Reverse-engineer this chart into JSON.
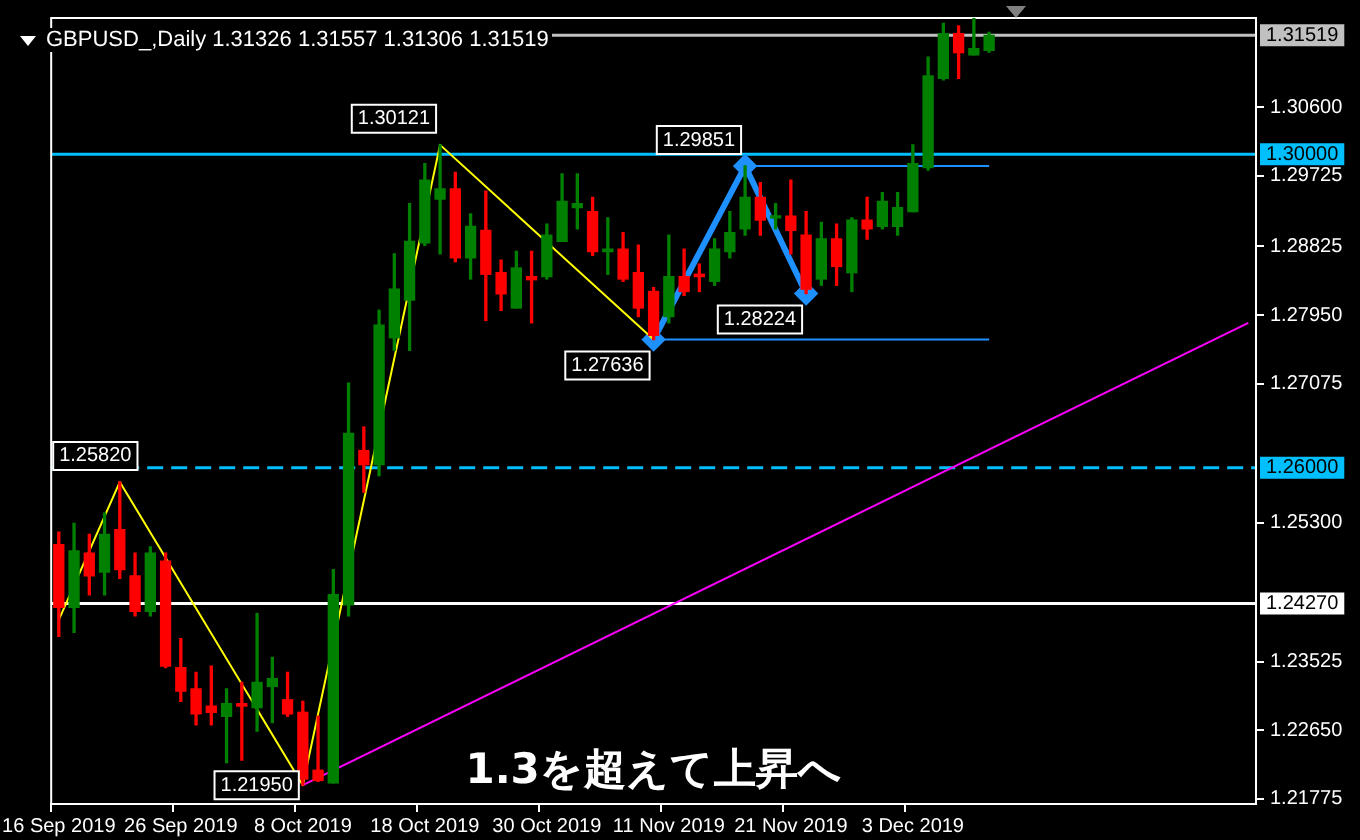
{
  "chart_data": {
    "type": "candlestick",
    "title": "GBPUSD_,Daily 1.31326 1.31557 1.31306 1.31519",
    "categories": [
      "16 Sep 2019",
      null,
      null,
      null,
      null,
      null,
      null,
      null,
      "26 Sep 2019",
      null,
      null,
      null,
      null,
      null,
      null,
      null,
      "8 Oct 2019",
      null,
      null,
      null,
      null,
      null,
      null,
      null,
      "18 Oct 2019",
      null,
      null,
      null,
      null,
      null,
      null,
      null,
      "30 Oct 2019",
      null,
      null,
      null,
      null,
      null,
      null,
      null,
      "11 Nov 2019",
      null,
      null,
      null,
      null,
      null,
      null,
      null,
      "21 Nov 2019",
      null,
      null,
      null,
      null,
      null,
      null,
      null,
      "3 Dec 2019",
      null,
      null,
      null,
      null,
      null,
      null,
      null,
      null,
      null,
      null,
      null,
      null,
      null,
      null,
      null,
      null,
      null,
      null,
      null,
      null,
      null,
      null
    ],
    "ohlc": [
      [
        1.2502,
        1.2518,
        1.2385,
        1.2422
      ],
      [
        1.2422,
        1.2529,
        1.239,
        1.2494
      ],
      [
        1.2491,
        1.2515,
        1.2438,
        1.2462
      ],
      [
        1.2467,
        1.2542,
        1.2438,
        1.2515
      ],
      [
        1.2521,
        1.2582,
        1.2459,
        1.247
      ],
      [
        1.2462,
        1.2491,
        1.2411,
        1.2417
      ],
      [
        1.2417,
        1.2499,
        1.2411,
        1.2491
      ],
      [
        1.2481,
        1.2491,
        1.2345,
        1.2347
      ],
      [
        1.2345,
        1.2382,
        1.2302,
        1.2315
      ],
      [
        1.2318,
        1.2339,
        1.2272,
        1.2286
      ],
      [
        1.2296,
        1.2347,
        1.2272,
        1.2288
      ],
      [
        1.2283,
        1.2318,
        1.2224,
        1.2299
      ],
      [
        1.2299,
        1.2326,
        1.2227,
        1.2296
      ],
      [
        1.2294,
        1.2414,
        1.2264,
        1.2326
      ],
      [
        1.2321,
        1.2358,
        1.2275,
        1.2331
      ],
      [
        1.2304,
        1.2339,
        1.2283,
        1.2286
      ],
      [
        1.2288,
        1.2302,
        1.2195,
        1.2203
      ],
      [
        1.2214,
        1.2283,
        1.22,
        1.2201
      ],
      [
        1.2198,
        1.247,
        1.2198,
        1.2438
      ],
      [
        1.2425,
        1.2708,
        1.2411,
        1.2644
      ],
      [
        1.2622,
        1.2652,
        1.2569,
        1.2604
      ],
      [
        1.2604,
        1.2801,
        1.259,
        1.2782
      ],
      [
        1.2766,
        1.2873,
        1.275,
        1.2828
      ],
      [
        1.2814,
        1.2937,
        1.275,
        1.2889
      ],
      [
        1.2887,
        1.2988,
        1.2884,
        1.2967
      ],
      [
        1.2943,
        1.30121,
        1.2873,
        1.2956
      ],
      [
        1.2956,
        1.2977,
        1.2863,
        1.2868
      ],
      [
        1.2868,
        1.2924,
        1.2841,
        1.2908
      ],
      [
        1.2903,
        1.2953,
        1.2788,
        1.2847
      ],
      [
        1.2849,
        1.2865,
        1.2801,
        1.2822
      ],
      [
        1.2804,
        1.2876,
        1.2804,
        1.2855
      ],
      [
        1.2844,
        1.2876,
        1.2785,
        1.284
      ],
      [
        1.2844,
        1.2911,
        1.2841,
        1.2897
      ],
      [
        1.2889,
        1.2975,
        1.2889,
        1.294
      ],
      [
        1.2932,
        1.2975,
        1.2905,
        1.2937
      ],
      [
        1.2927,
        1.2945,
        1.2871,
        1.2876
      ],
      [
        1.2876,
        1.2919,
        1.2847,
        1.2879
      ],
      [
        1.2879,
        1.29,
        1.2838,
        1.2841
      ],
      [
        1.2849,
        1.2884,
        1.2793,
        1.2804
      ],
      [
        1.2825,
        1.283,
        1.27636,
        1.2769
      ],
      [
        1.2793,
        1.2897,
        1.2785,
        1.2844
      ],
      [
        1.2844,
        1.2879,
        1.282,
        1.2825
      ],
      [
        1.2847,
        1.286,
        1.2825,
        1.2844
      ],
      [
        1.2838,
        1.2892,
        1.2833,
        1.2879
      ],
      [
        1.2876,
        1.2927,
        1.2868,
        1.29
      ],
      [
        1.2905,
        1.29851,
        1.2897,
        1.2945
      ],
      [
        1.2945,
        1.2964,
        1.2897,
        1.2916
      ],
      [
        1.2919,
        1.2937,
        1.2905,
        1.2921
      ],
      [
        1.2921,
        1.2967,
        1.2873,
        1.2903
      ],
      [
        1.2897,
        1.2927,
        1.28224,
        1.2828
      ],
      [
        1.2841,
        1.2913,
        1.2833,
        1.2892
      ],
      [
        1.2892,
        1.2911,
        1.2833,
        1.2857
      ],
      [
        1.2849,
        1.2919,
        1.2825,
        1.2916
      ],
      [
        1.2916,
        1.2945,
        1.2892,
        1.2905
      ],
      [
        1.2908,
        1.2951,
        1.2905,
        1.294
      ],
      [
        1.2908,
        1.2951,
        1.2897,
        1.2932
      ],
      [
        1.2927,
        1.3012,
        1.2927,
        1.2988
      ],
      [
        1.2983,
        1.3124,
        1.298,
        1.31
      ],
      [
        1.3097,
        1.3167,
        1.3095,
        1.3154
      ],
      [
        1.3154,
        1.3164,
        1.3097,
        1.313
      ],
      [
        1.3127,
        1.318,
        1.3127,
        1.3135
      ],
      [
        1.31326,
        1.31557,
        1.31306,
        1.31519
      ],
      null,
      null,
      null,
      null,
      null,
      null,
      null,
      null,
      null,
      null,
      null,
      null,
      null,
      null,
      null,
      null,
      null
    ],
    "colors": [
      "#ff0000",
      "#008000",
      "#ff0000",
      "#008000",
      "#ff0000",
      "#ff0000",
      "#008000",
      "#ff0000",
      "#ff0000",
      "#ff0000",
      "#ff0000",
      "#008000",
      "#ff0000",
      "#008000",
      "#008000",
      "#ff0000",
      "#ff0000",
      "#ff0000",
      "#008000",
      "#008000",
      "#ff0000",
      "#008000",
      "#008000",
      "#008000",
      "#008000",
      "#008000",
      "#ff0000",
      "#008000",
      "#ff0000",
      "#ff0000",
      "#008000",
      "#ff0000",
      "#008000",
      "#008000",
      "#008000",
      "#ff0000",
      "#008000",
      "#ff0000",
      "#ff0000",
      "#ff0000",
      "#008000",
      "#ff0000",
      "#ff0000",
      "#008000",
      "#008000",
      "#008000",
      "#ff0000",
      "#008000",
      "#ff0000",
      "#ff0000",
      "#008000",
      "#ff0000",
      "#008000",
      "#ff0000",
      "#008000",
      "#008000",
      "#008000",
      "#008000",
      "#008000",
      "#ff0000",
      "#008000",
      "#008000",
      null,
      null,
      null,
      null,
      null,
      null,
      null,
      null,
      null,
      null,
      null,
      null,
      null,
      null,
      null,
      null,
      null
    ],
    "series": [
      {
        "type": "line",
        "color": "#ffff00",
        "values": [
          1.2406,
          null,
          null,
          null,
          1.2582,
          null,
          null,
          null,
          null,
          null,
          null,
          null,
          null,
          null,
          null,
          null,
          1.2195,
          null,
          null,
          null,
          null,
          null,
          null,
          null,
          null,
          1.30121,
          null,
          null,
          null,
          null,
          null,
          null,
          null,
          null,
          null,
          null,
          null,
          null,
          null,
          1.27636,
          null,
          null,
          null,
          null,
          null,
          null,
          null,
          null,
          null,
          null,
          null,
          null,
          null,
          null,
          null,
          null,
          null,
          null,
          null,
          null,
          null,
          null,
          null,
          null,
          null,
          null,
          null,
          null,
          null,
          null,
          null,
          null,
          null,
          null,
          null,
          null,
          null,
          null,
          null
        ],
        "value_labels": [
          null,
          null,
          null,
          null,
          "1.25820",
          null,
          null,
          null,
          null,
          null,
          null,
          null,
          null,
          null,
          null,
          null,
          "1.21950",
          null,
          null,
          null,
          null,
          null,
          null,
          null,
          null,
          "1.30121",
          null,
          null,
          null,
          null,
          null,
          null,
          null,
          null,
          null,
          null,
          null,
          null,
          null,
          "1.27636",
          null,
          null,
          null,
          null,
          null,
          null,
          null,
          null,
          null,
          null,
          null,
          null,
          null,
          null,
          null,
          null,
          null,
          null,
          null,
          null,
          null,
          null,
          null,
          null,
          null,
          null,
          null,
          null,
          null,
          null,
          null,
          null,
          null,
          null,
          null,
          null,
          null,
          null,
          null
        ]
      },
      {
        "type": "line",
        "color": "#1e90ff",
        "marker": "diamond",
        "values": [
          null,
          null,
          null,
          null,
          null,
          null,
          null,
          null,
          null,
          null,
          null,
          null,
          null,
          null,
          null,
          null,
          null,
          null,
          null,
          null,
          null,
          null,
          null,
          null,
          null,
          null,
          null,
          null,
          null,
          null,
          null,
          null,
          null,
          null,
          null,
          null,
          null,
          null,
          null,
          1.27636,
          null,
          null,
          null,
          null,
          null,
          1.29851,
          null,
          null,
          null,
          1.28224,
          null,
          null,
          null,
          null,
          null,
          null,
          null,
          null,
          null,
          null,
          null,
          null,
          null,
          null,
          null,
          null,
          null,
          null,
          null,
          null,
          null,
          null,
          null,
          null,
          null,
          null,
          null,
          null,
          null
        ],
        "value_labels": [
          null,
          null,
          null,
          null,
          null,
          null,
          null,
          null,
          null,
          null,
          null,
          null,
          null,
          null,
          null,
          null,
          null,
          null,
          null,
          null,
          null,
          null,
          null,
          null,
          null,
          null,
          null,
          null,
          null,
          null,
          null,
          null,
          null,
          null,
          null,
          null,
          null,
          null,
          null,
          null,
          null,
          null,
          null,
          null,
          null,
          "1.29851",
          null,
          null,
          null,
          "1.28224",
          null,
          null,
          null,
          null,
          null,
          null,
          null,
          null,
          null,
          null,
          null,
          null,
          null,
          null,
          null,
          null,
          null,
          null,
          null,
          null,
          null,
          null,
          null,
          null,
          null,
          null,
          null,
          null,
          null
        ]
      },
      {
        "type": "line",
        "color": "#1e90ff",
        "values": [
          null,
          null,
          null,
          null,
          null,
          null,
          null,
          null,
          null,
          null,
          null,
          null,
          null,
          null,
          null,
          null,
          null,
          null,
          null,
          null,
          null,
          null,
          null,
          null,
          null,
          null,
          null,
          null,
          null,
          null,
          null,
          null,
          null,
          null,
          null,
          null,
          null,
          null,
          null,
          null,
          null,
          null,
          null,
          null,
          null,
          1.29851,
          null,
          null,
          null,
          null,
          null,
          null,
          null,
          null,
          null,
          null,
          null,
          null,
          null,
          null,
          null,
          1.29851,
          null,
          null,
          null,
          null,
          null,
          null,
          null,
          null,
          null,
          null,
          null,
          null,
          null,
          null,
          null,
          null,
          null
        ]
      },
      {
        "type": "line",
        "color": "#1e90ff",
        "values": [
          null,
          null,
          null,
          null,
          null,
          null,
          null,
          null,
          null,
          null,
          null,
          null,
          null,
          null,
          null,
          null,
          null,
          null,
          null,
          null,
          null,
          null,
          null,
          null,
          null,
          null,
          null,
          null,
          null,
          null,
          null,
          null,
          null,
          null,
          null,
          null,
          null,
          null,
          null,
          1.27636,
          null,
          null,
          null,
          null,
          null,
          null,
          null,
          null,
          null,
          null,
          null,
          null,
          null,
          null,
          null,
          null,
          null,
          null,
          null,
          null,
          null,
          1.27636,
          null,
          null,
          null,
          null,
          null,
          null,
          null,
          null,
          null,
          null,
          null,
          null,
          null,
          null,
          null,
          null,
          null
        ]
      },
      {
        "type": "line",
        "color": "#ff00ff",
        "values": [
          null,
          null,
          null,
          null,
          null,
          null,
          null,
          null,
          null,
          null,
          null,
          null,
          null,
          null,
          null,
          null,
          1.2195,
          null,
          null,
          null,
          null,
          null,
          null,
          null,
          null,
          null,
          null,
          null,
          null,
          null,
          null,
          null,
          null,
          null,
          null,
          null,
          null,
          null,
          null,
          null,
          null,
          null,
          null,
          null,
          null,
          null,
          null,
          null,
          null,
          null,
          null,
          null,
          null,
          null,
          null,
          null,
          null,
          null,
          null,
          null,
          null,
          null,
          null,
          null,
          null,
          null,
          null,
          null,
          null,
          null,
          null,
          null,
          null,
          null,
          null,
          null,
          null,
          null,
          1.2785
        ]
      }
    ],
    "ylim": [
      1.2171,
      1.3174
    ],
    "yticks": [
      {
        "value": 1.306,
        "label": "1.30600"
      },
      {
        "value": 1.29725,
        "label": "1.29725"
      },
      {
        "value": 1.28825,
        "label": "1.28825"
      },
      {
        "value": 1.2795,
        "label": "1.27950"
      },
      {
        "value": 1.27075,
        "label": "1.27075"
      },
      {
        "value": 1.253,
        "label": "1.25300"
      },
      {
        "value": 1.23525,
        "label": "1.23525"
      },
      {
        "value": 1.2265,
        "label": "1.22650"
      },
      {
        "value": 1.21775,
        "label": "1.21775"
      }
    ],
    "ref_lines": [
      {
        "axis": "y",
        "value": 1.31519,
        "label": "1.31519",
        "color": "#c0c0c0"
      },
      {
        "axis": "y",
        "value": 1.3,
        "label": "1.30000",
        "color": "#00bfff"
      },
      {
        "axis": "y",
        "value": 1.26,
        "label": "1.26000",
        "color": "#00bfff",
        "line_style": "dashed"
      },
      {
        "axis": "y",
        "value": 1.2427,
        "label": "1.24270",
        "color": "#ffffff"
      }
    ],
    "annotations": [
      "1.3を超えて上昇へ"
    ]
  }
}
